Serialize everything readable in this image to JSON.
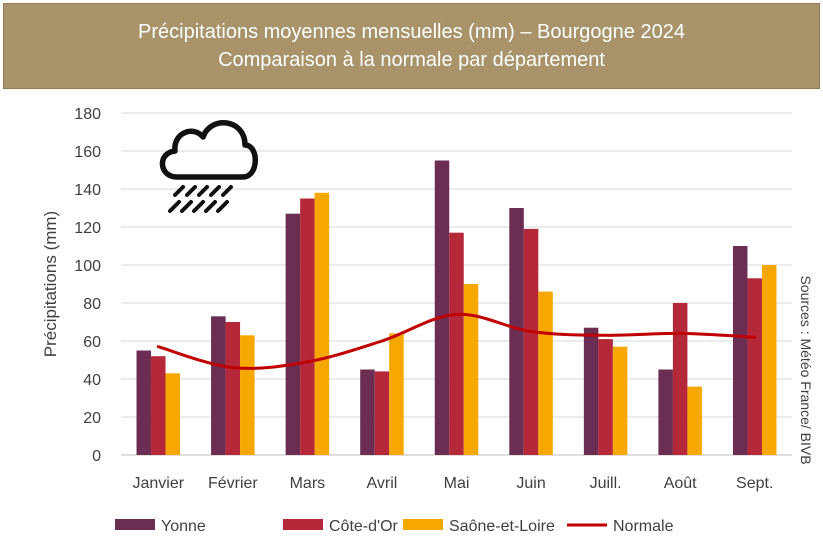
{
  "chart_data": {
    "type": "bar",
    "title": "Précipitations moyennes mensuelles (mm) – Bourgogne 2024",
    "subtitle": "Comparaison à la normale par département",
    "xlabel": "",
    "ylabel": "Précipitations (mm)",
    "ylim": [
      0,
      180
    ],
    "yticks": [
      0,
      20,
      40,
      60,
      80,
      100,
      120,
      140,
      160,
      180
    ],
    "grid": true,
    "legend_position": "bottom",
    "categories": [
      "Janvier",
      "Février",
      "Mars",
      "Avril",
      "Mai",
      "Juin",
      "Juill.",
      "Août",
      "Sept."
    ],
    "series": [
      {
        "name": "Yonne",
        "type": "bar",
        "color": "#6b2d52",
        "values": [
          55,
          73,
          127,
          45,
          155,
          130,
          67,
          45,
          110
        ]
      },
      {
        "name": "Côte-d'Or",
        "type": "bar",
        "color": "#b5283a",
        "values": [
          52,
          70,
          135,
          44,
          117,
          119,
          61,
          80,
          93
        ]
      },
      {
        "name": "Saône-et-Loire",
        "type": "bar",
        "color": "#f7a800",
        "values": [
          43,
          63,
          138,
          64,
          90,
          86,
          57,
          36,
          100
        ]
      },
      {
        "name": "Normale",
        "type": "line",
        "color": "#c00000",
        "values": [
          57,
          46,
          49,
          60,
          74,
          65,
          63,
          64,
          62
        ]
      }
    ],
    "source": "Sources : Météo France/ BIVB",
    "icon": "rain-cloud-icon"
  }
}
